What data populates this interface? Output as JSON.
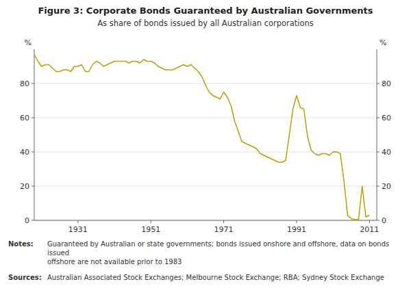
{
  "chart_data": {
    "type": "line",
    "title": "Figure 3: Corporate Bonds Guaranteed by Australian Governments",
    "subtitle": "As share of bonds issued by all Australian corporations",
    "y_label": "%",
    "y2_label": "%",
    "annotations": [
      "Notes:",
      "Guaranteed by Australian or state governments; bonds issued onshore and offshore, data on bonds issued\noffshore are not available prior to 1983",
      "Sources:",
      "Australian Associated Stock Exchanges; Melbourne Stock Exchange; RBA; Sydney Stock Exchange"
    ],
    "color": "#B8A000",
    "grid": true,
    "xlim": [
      1919,
      2013
    ],
    "xticks": [
      1931,
      1951,
      1971,
      1991,
      2011
    ],
    "ylim": [
      0,
      100
    ],
    "yticks": [
      0,
      20,
      40,
      60,
      80
    ],
    "y2lim": [
      0,
      100
    ],
    "y2ticks": [
      0,
      20,
      40,
      60,
      80
    ],
    "x": [
      1919,
      1920,
      1921,
      1922,
      1923,
      1924,
      1925,
      1926,
      1927,
      1928,
      1929,
      1930,
      1931,
      1932,
      1933,
      1934,
      1935,
      1936,
      1937,
      1938,
      1939,
      1940,
      1941,
      1942,
      1943,
      1944,
      1945,
      1946,
      1947,
      1948,
      1949,
      1950,
      1951,
      1952,
      1953,
      1954,
      1955,
      1956,
      1957,
      1958,
      1959,
      1960,
      1961,
      1962,
      1963,
      1964,
      1965,
      1966,
      1967,
      1968,
      1969,
      1970,
      1971,
      1972,
      1973,
      1974,
      1975,
      1976,
      1977,
      1978,
      1979,
      1980,
      1981,
      1982,
      1983,
      1984,
      1985,
      1986,
      1987,
      1988,
      1989,
      1990,
      1991,
      1992,
      1993,
      1994,
      1995,
      1996,
      1997,
      1998,
      1999,
      2000,
      2001,
      2002,
      2003,
      2004,
      2005,
      2006,
      2007,
      2008,
      2009,
      2010,
      2011
    ],
    "values": [
      97,
      93,
      90,
      91,
      91,
      89,
      87,
      87,
      88,
      88,
      87,
      90,
      90,
      91,
      87,
      87,
      91,
      93,
      92,
      90,
      91,
      92,
      93,
      93,
      93,
      93,
      92,
      93,
      93,
      92,
      94,
      93,
      93,
      92,
      90,
      89,
      88,
      88,
      88,
      89,
      90,
      91,
      90,
      91,
      89,
      87,
      84,
      79,
      75,
      73,
      72,
      71,
      75,
      72,
      67,
      58,
      52,
      46,
      45,
      44,
      43,
      42,
      39,
      38,
      37,
      36,
      35,
      34,
      34,
      35,
      50,
      65,
      73,
      66,
      65,
      49,
      41,
      39,
      38,
      39,
      39,
      38,
      40,
      40,
      39,
      23,
      3,
      1,
      0.5,
      0.5,
      20,
      2,
      3
    ]
  }
}
